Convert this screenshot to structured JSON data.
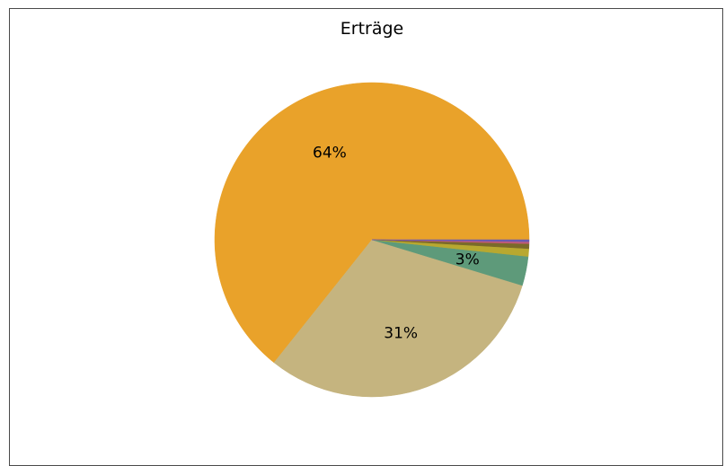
{
  "chart_data": {
    "type": "pie",
    "title": "Erträge",
    "slices": [
      {
        "value": 64.3,
        "color": "#E9A22A",
        "label": "64%"
      },
      {
        "value": 31.0,
        "color": "#C5B47F",
        "label": "31%"
      },
      {
        "value": 3.0,
        "color": "#5E9A7A",
        "label": "3%"
      },
      {
        "value": 0.8,
        "color": "#B8A830",
        "label": ""
      },
      {
        "value": 0.5,
        "color": "#7A6A2A",
        "label": ""
      },
      {
        "value": 0.2,
        "color": "#C25A78",
        "label": ""
      },
      {
        "value": 0.2,
        "color": "#6A5AB0",
        "label": ""
      }
    ],
    "legend": "none"
  }
}
